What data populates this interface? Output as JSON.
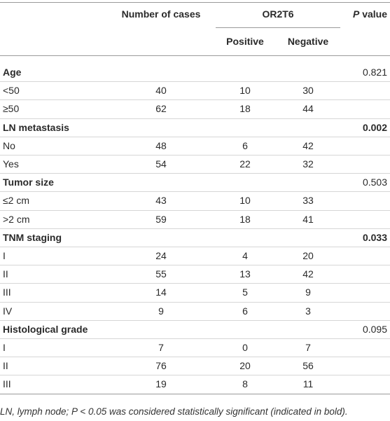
{
  "header": {
    "cases": "Number of cases",
    "group": "OR2T6",
    "positive": "Positive",
    "negative": "Negative",
    "p_value": [
      "P",
      "value"
    ]
  },
  "groups": [
    {
      "title": "Age",
      "p": 0.821,
      "p_bold": false,
      "rows": [
        [
          "<50",
          40,
          10,
          30
        ],
        [
          "≥50",
          62,
          18,
          44
        ]
      ]
    },
    {
      "title": "LN metastasis",
      "p": 0.002,
      "p_bold": true,
      "rows": [
        [
          "No",
          48,
          6,
          42
        ],
        [
          "Yes",
          54,
          22,
          32
        ]
      ]
    },
    {
      "title": "Tumor size",
      "p": 0.503,
      "p_bold": false,
      "rows": [
        [
          "≤2 cm",
          43,
          10,
          33
        ],
        [
          ">2 cm",
          59,
          18,
          41
        ]
      ]
    },
    {
      "title": "TNM staging",
      "p": 0.033,
      "p_bold": true,
      "rows": [
        [
          "I",
          24,
          4,
          20
        ],
        [
          "II",
          55,
          13,
          42
        ],
        [
          "III",
          14,
          5,
          9
        ],
        [
          "IV",
          9,
          6,
          3
        ]
      ]
    },
    {
      "title": "Histological grade",
      "p": 0.095,
      "p_bold": false,
      "rows": [
        [
          "I",
          7,
          0,
          7
        ],
        [
          "II",
          76,
          20,
          56
        ],
        [
          "III",
          19,
          8,
          11
        ]
      ]
    }
  ],
  "footnote": "LN, lymph node; P < 0.05 was considered statistically significant (indicated in bold)."
}
